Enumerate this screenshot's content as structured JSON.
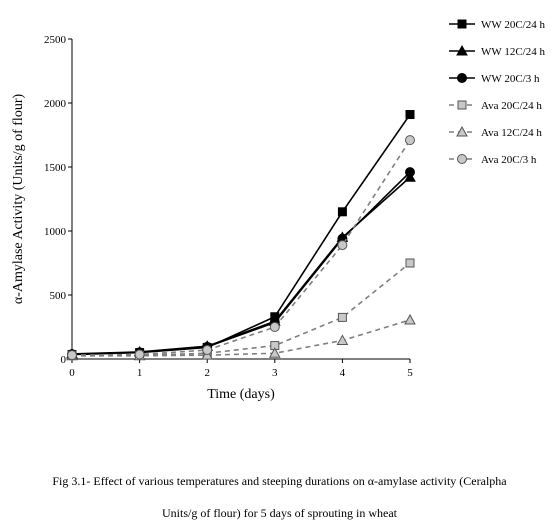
{
  "chart_data": {
    "type": "line",
    "x": [
      0,
      1,
      2,
      3,
      4,
      5
    ],
    "xlabel": "Time (days)",
    "ylabel": "α-Amylase Activity (Units/g of flour)",
    "xlim": [
      0,
      5
    ],
    "ylim": [
      0,
      2500
    ],
    "xticks": [
      "0",
      "1",
      "2",
      "3",
      "4",
      "5"
    ],
    "yticks": [
      "0",
      "500",
      "1000",
      "1500",
      "2000",
      "2500"
    ],
    "grid": false,
    "legend_position": "top-right",
    "series": [
      {
        "name": "WW 20C/24 h",
        "values": [
          35,
          50,
          90,
          330,
          1150,
          1910
        ],
        "color": "#000000",
        "marker": "square",
        "dashed": false
      },
      {
        "name": "WW 12C/24 h",
        "values": [
          40,
          55,
          100,
          295,
          950,
          1420
        ],
        "color": "#000000",
        "marker": "triangle",
        "dashed": false
      },
      {
        "name": "WW 20C/3 h",
        "values": [
          38,
          52,
          95,
          285,
          940,
          1460
        ],
        "color": "#000000",
        "marker": "circle",
        "dashed": false
      },
      {
        "name": "Ava 20C/24 h",
        "values": [
          30,
          30,
          45,
          105,
          325,
          750
        ],
        "color": "#7f7f7f",
        "marker": "square",
        "dashed": true
      },
      {
        "name": "Ava 12C/24 h",
        "values": [
          25,
          25,
          30,
          45,
          145,
          305
        ],
        "color": "#7f7f7f",
        "marker": "triangle",
        "dashed": true
      },
      {
        "name": "Ava 20C/3 h",
        "values": [
          30,
          35,
          70,
          250,
          890,
          1710
        ],
        "color": "#7f7f7f",
        "marker": "circle",
        "dashed": true
      }
    ]
  },
  "caption": {
    "line1": "Fig 3.1- Effect of various temperatures and steeping durations on α-amylase activity (Ceralpha",
    "line2": "Units/g of flour) for 5 days of sprouting in wheat"
  }
}
